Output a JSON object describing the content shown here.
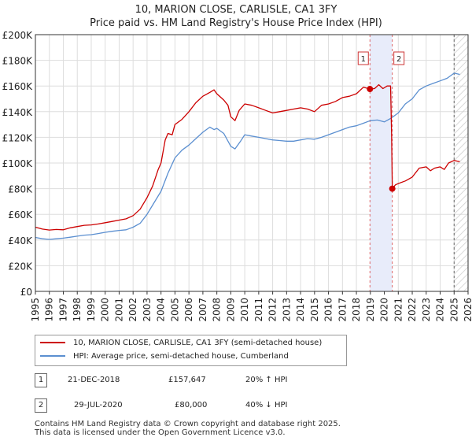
{
  "title": {
    "line1": "10, MARION CLOSE, CARLISLE, CA1 3FY",
    "line2": "Price paid vs. HM Land Registry's House Price Index (HPI)"
  },
  "colors": {
    "property": "#cc0000",
    "hpi": "#5b8fd0",
    "shade": "#e8ecfa"
  },
  "legend": {
    "property_label": "10, MARION CLOSE, CARLISLE, CA1 3FY (semi-detached house)",
    "hpi_label": "HPI: Average price, semi-detached house, Cumberland"
  },
  "annotations": [
    {
      "num": "1",
      "date": "21-DEC-2018",
      "price": "£157,647",
      "change": "20% ↑ HPI"
    },
    {
      "num": "2",
      "date": "29-JUL-2020",
      "price": "£80,000",
      "change": "40% ↓ HPI"
    }
  ],
  "footer": {
    "line1": "Contains HM Land Registry data © Crown copyright and database right 2025.",
    "line2": "This data is licensed under the Open Government Licence v3.0."
  },
  "chart_data": {
    "type": "line",
    "title": "10, MARION CLOSE, CARLISLE, CA1 3FY",
    "xlim": [
      1995,
      2026
    ],
    "ylim": [
      0,
      200000
    ],
    "y_ticks": [
      {
        "v": 0,
        "label": "£0"
      },
      {
        "v": 20000,
        "label": "£20K"
      },
      {
        "v": 40000,
        "label": "£40K"
      },
      {
        "v": 60000,
        "label": "£60K"
      },
      {
        "v": 80000,
        "label": "£80K"
      },
      {
        "v": 100000,
        "label": "£100K"
      },
      {
        "v": 120000,
        "label": "£120K"
      },
      {
        "v": 140000,
        "label": "£140K"
      },
      {
        "v": 160000,
        "label": "£160K"
      },
      {
        "v": 180000,
        "label": "£180K"
      },
      {
        "v": 200000,
        "label": "£200K"
      }
    ],
    "x_ticks": [
      "1995",
      "1996",
      "1997",
      "1998",
      "1999",
      "2000",
      "2001",
      "2002",
      "2003",
      "2004",
      "2005",
      "2006",
      "2007",
      "2008",
      "2009",
      "2010",
      "2011",
      "2012",
      "2013",
      "2014",
      "2015",
      "2016",
      "2017",
      "2018",
      "2019",
      "2020",
      "2021",
      "2022",
      "2023",
      "2024",
      "2025",
      "2026"
    ],
    "shaded_region": [
      2018.97,
      2020.57
    ],
    "future_hatch_start": 2025.0,
    "sales": [
      {
        "label": "1",
        "x": 2018.97,
        "y": 157647
      },
      {
        "label": "2",
        "x": 2020.57,
        "y": 80000
      }
    ],
    "series": [
      {
        "name": "10, MARION CLOSE, CARLISLE, CA1 3FY (semi-detached house)",
        "color": "#cc0000",
        "points": [
          [
            1995.0,
            50000
          ],
          [
            1995.5,
            48500
          ],
          [
            1996.0,
            47800
          ],
          [
            1996.5,
            48200
          ],
          [
            1997.0,
            48000
          ],
          [
            1997.5,
            49500
          ],
          [
            1998.0,
            50500
          ],
          [
            1998.5,
            51500
          ],
          [
            1999.0,
            51800
          ],
          [
            1999.5,
            52500
          ],
          [
            2000.0,
            53500
          ],
          [
            2000.5,
            54500
          ],
          [
            2001.0,
            55500
          ],
          [
            2001.5,
            56500
          ],
          [
            2002.0,
            59000
          ],
          [
            2002.5,
            64000
          ],
          [
            2003.0,
            73000
          ],
          [
            2003.4,
            82000
          ],
          [
            2003.8,
            95000
          ],
          [
            2004.0,
            100000
          ],
          [
            2004.3,
            118000
          ],
          [
            2004.5,
            123000
          ],
          [
            2004.8,
            122000
          ],
          [
            2005.0,
            130000
          ],
          [
            2005.5,
            134000
          ],
          [
            2006.0,
            140000
          ],
          [
            2006.5,
            147000
          ],
          [
            2007.0,
            152000
          ],
          [
            2007.5,
            155000
          ],
          [
            2007.8,
            157000
          ],
          [
            2008.0,
            154000
          ],
          [
            2008.5,
            149000
          ],
          [
            2008.8,
            145000
          ],
          [
            2009.0,
            136000
          ],
          [
            2009.3,
            133000
          ],
          [
            2009.6,
            141000
          ],
          [
            2010.0,
            146000
          ],
          [
            2010.5,
            145000
          ],
          [
            2011.0,
            143000
          ],
          [
            2011.5,
            141000
          ],
          [
            2012.0,
            139000
          ],
          [
            2012.5,
            140000
          ],
          [
            2013.0,
            141000
          ],
          [
            2013.5,
            142000
          ],
          [
            2014.0,
            143000
          ],
          [
            2014.5,
            142000
          ],
          [
            2015.0,
            140000
          ],
          [
            2015.5,
            145000
          ],
          [
            2016.0,
            146000
          ],
          [
            2016.5,
            148000
          ],
          [
            2017.0,
            151000
          ],
          [
            2017.5,
            152000
          ],
          [
            2018.0,
            154000
          ],
          [
            2018.5,
            159000
          ],
          [
            2018.97,
            157647
          ],
          [
            2019.3,
            158000
          ],
          [
            2019.6,
            161000
          ],
          [
            2019.9,
            158000
          ],
          [
            2020.2,
            160000
          ],
          [
            2020.45,
            160000
          ],
          [
            2020.52,
            122000
          ],
          [
            2020.57,
            80000
          ],
          [
            2020.8,
            83000
          ],
          [
            2021.0,
            84000
          ],
          [
            2021.5,
            86000
          ],
          [
            2022.0,
            89000
          ],
          [
            2022.5,
            96000
          ],
          [
            2023.0,
            97000
          ],
          [
            2023.3,
            94000
          ],
          [
            2023.6,
            96000
          ],
          [
            2024.0,
            97000
          ],
          [
            2024.3,
            95000
          ],
          [
            2024.6,
            100000
          ],
          [
            2025.0,
            102000
          ],
          [
            2025.4,
            101000
          ]
        ]
      },
      {
        "name": "HPI: Average price, semi-detached house, Cumberland",
        "color": "#5b8fd0",
        "points": [
          [
            1995.0,
            42000
          ],
          [
            1995.5,
            41000
          ],
          [
            1996.0,
            40500
          ],
          [
            1996.5,
            41000
          ],
          [
            1997.0,
            41500
          ],
          [
            1997.5,
            42200
          ],
          [
            1998.0,
            43000
          ],
          [
            1998.5,
            43800
          ],
          [
            1999.0,
            44200
          ],
          [
            1999.5,
            45000
          ],
          [
            2000.0,
            46000
          ],
          [
            2000.5,
            46800
          ],
          [
            2001.0,
            47500
          ],
          [
            2001.5,
            48000
          ],
          [
            2002.0,
            50000
          ],
          [
            2002.5,
            53000
          ],
          [
            2003.0,
            60000
          ],
          [
            2003.5,
            69000
          ],
          [
            2004.0,
            78000
          ],
          [
            2004.5,
            92000
          ],
          [
            2005.0,
            104000
          ],
          [
            2005.5,
            110000
          ],
          [
            2006.0,
            114000
          ],
          [
            2006.5,
            119000
          ],
          [
            2007.0,
            124000
          ],
          [
            2007.5,
            128000
          ],
          [
            2007.8,
            126000
          ],
          [
            2008.0,
            127000
          ],
          [
            2008.5,
            123000
          ],
          [
            2009.0,
            113000
          ],
          [
            2009.3,
            111000
          ],
          [
            2009.7,
            117000
          ],
          [
            2010.0,
            122000
          ],
          [
            2010.5,
            121000
          ],
          [
            2011.0,
            120000
          ],
          [
            2011.5,
            119000
          ],
          [
            2012.0,
            118000
          ],
          [
            2012.5,
            117500
          ],
          [
            2013.0,
            117000
          ],
          [
            2013.5,
            117000
          ],
          [
            2014.0,
            118000
          ],
          [
            2014.5,
            119000
          ],
          [
            2015.0,
            118500
          ],
          [
            2015.5,
            120000
          ],
          [
            2016.0,
            122000
          ],
          [
            2016.5,
            124000
          ],
          [
            2017.0,
            126000
          ],
          [
            2017.5,
            128000
          ],
          [
            2018.0,
            129000
          ],
          [
            2018.5,
            131000
          ],
          [
            2019.0,
            133000
          ],
          [
            2019.5,
            133500
          ],
          [
            2020.0,
            132000
          ],
          [
            2020.5,
            135000
          ],
          [
            2021.0,
            139000
          ],
          [
            2021.5,
            146000
          ],
          [
            2022.0,
            150000
          ],
          [
            2022.5,
            157000
          ],
          [
            2023.0,
            160000
          ],
          [
            2023.5,
            162000
          ],
          [
            2024.0,
            164000
          ],
          [
            2024.5,
            166000
          ],
          [
            2025.0,
            170000
          ],
          [
            2025.4,
            169000
          ]
        ]
      }
    ]
  }
}
